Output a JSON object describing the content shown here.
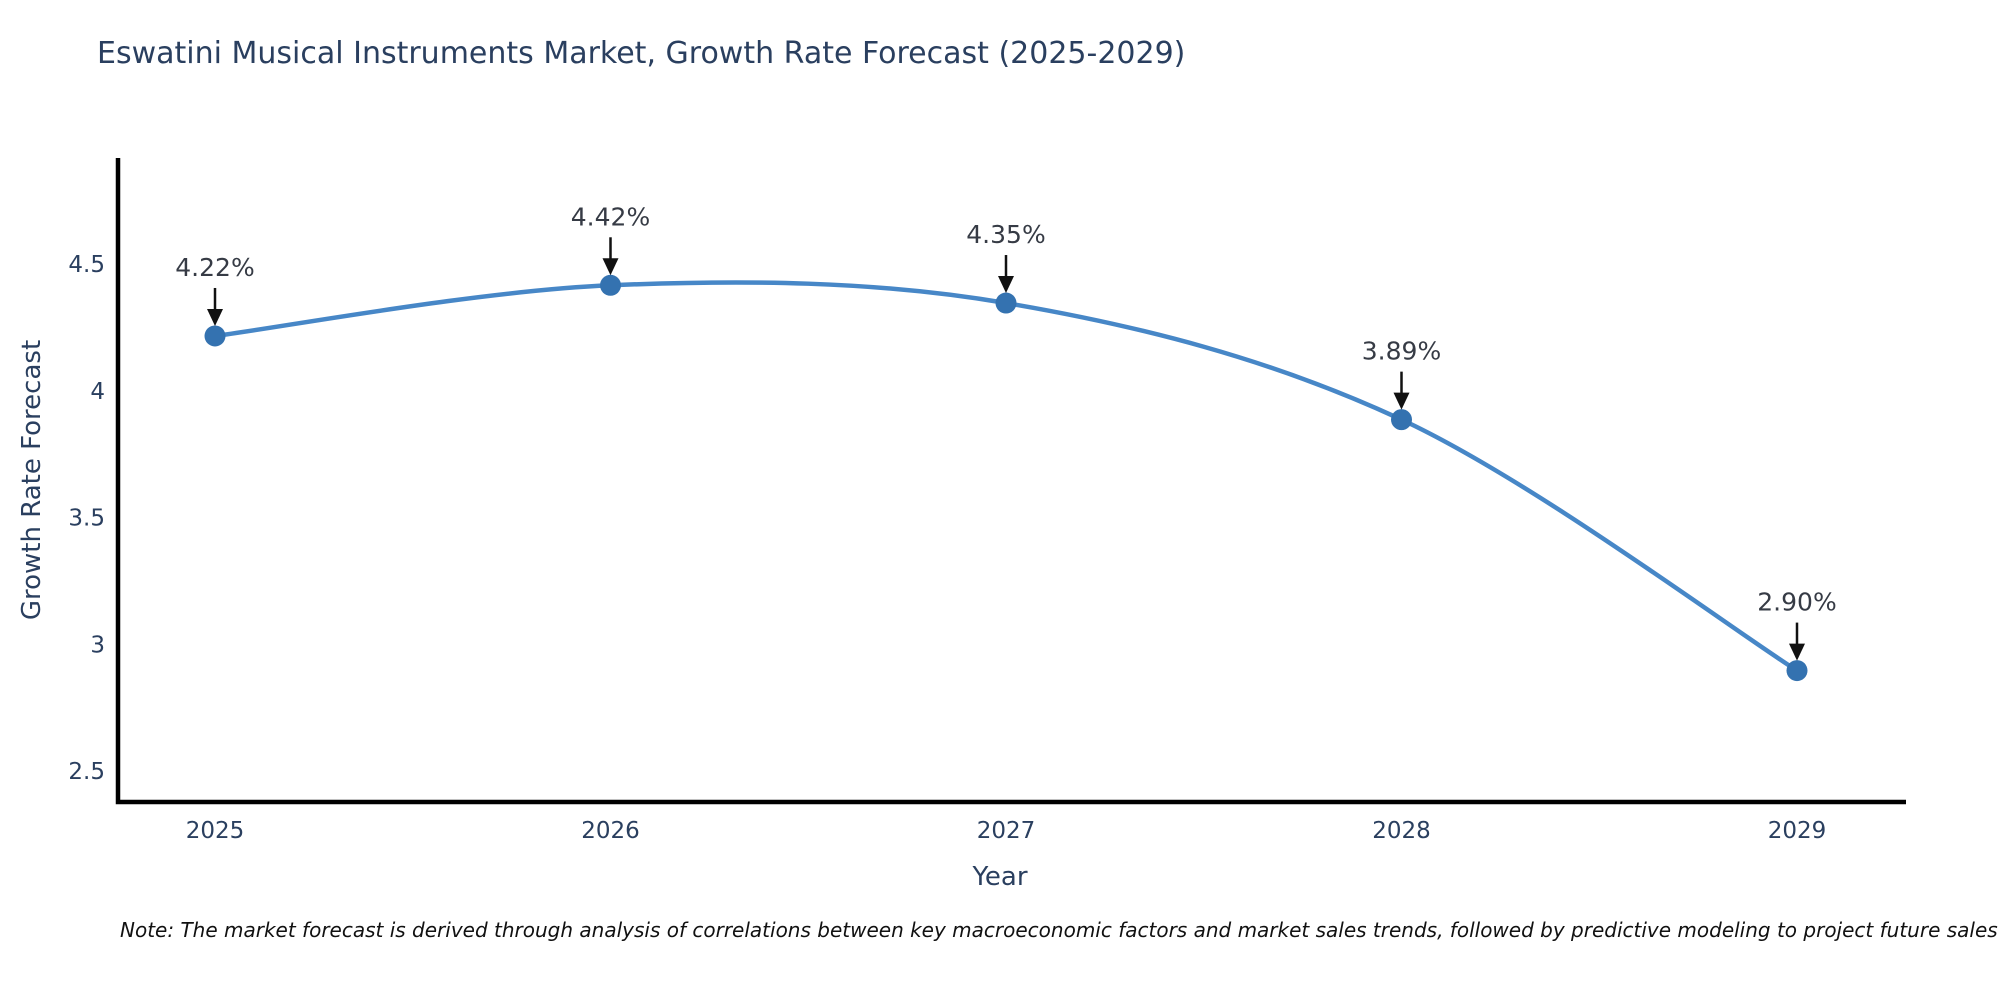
{
  "title": "Eswatini Musical Instruments Market, Growth Rate Forecast (2025-2029)",
  "note": "Note: The market forecast is derived through analysis of correlations between key macroeconomic factors and market sales trends, followed by predictive modeling to project future sales",
  "colors": {
    "line": "#4787c7",
    "marker": "#3472b0",
    "axis": "#000000",
    "title_text": "#2a3f5f",
    "tick_text": "#2a3f5f",
    "annotation_text": "#363b45",
    "arrow": "#111111",
    "background": "#ffffff"
  },
  "chart_data": {
    "type": "line",
    "title": "Eswatini Musical Instruments Market, Growth Rate Forecast (2025-2029)",
    "x": [
      2025,
      2026,
      2027,
      2028,
      2029
    ],
    "series": [
      {
        "name": "Growth Rate Forecast",
        "values": [
          4.22,
          4.42,
          4.35,
          3.89,
          2.9
        ]
      }
    ],
    "point_labels": [
      "4.22%",
      "4.42%",
      "4.35%",
      "3.89%",
      "2.90%"
    ],
    "xlabel": "Year",
    "ylabel": "Growth Rate Forecast",
    "xtick_labels": [
      "2025",
      "2026",
      "2027",
      "2028",
      "2029"
    ],
    "yticks": [
      2.5,
      3,
      3.5,
      4,
      4.5
    ],
    "ytick_labels": [
      "2.5",
      "3",
      "3.5",
      "4",
      "4.5"
    ],
    "ylim": [
      2.38,
      4.92
    ],
    "grid": false,
    "legend": false,
    "annotation_style": "down-arrow-to-point",
    "line_smoothing": "spline"
  }
}
